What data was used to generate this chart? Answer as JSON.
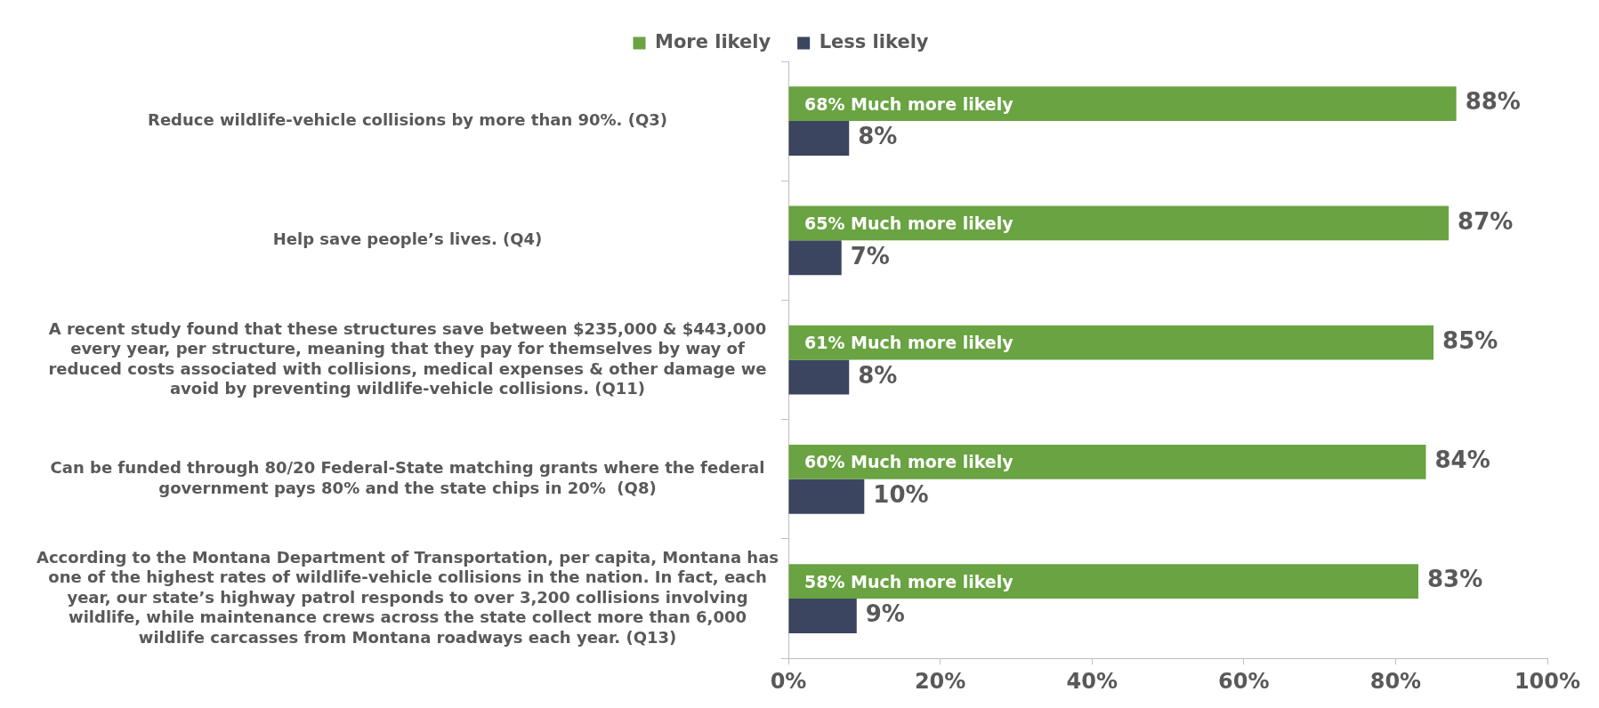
{
  "chart_data": {
    "type": "bar",
    "orientation": "horizontal",
    "categories": [
      "Reduce wildlife-vehicle collisions by more than 90%. (Q3)",
      "Help save people’s lives. (Q4)",
      "A recent study found that these structures save between $235,000 & $443,000 every year, per structure, meaning that they pay for themselves by way of reduced costs associated with collisions, medical expenses & other damage we avoid by preventing wildlife-vehicle collisions. (Q11)",
      "Can be funded through 80/20 Federal-State matching grants where the federal government pays 80% and the state chips in 20%  (Q8)",
      "According to the Montana Department of Transportation, per capita, Montana has one of the highest rates of wildlife-vehicle collisions in the nation. In fact, each year, our state’s highway patrol responds to over 3,200 collisions involving wildlife, while maintenance crews across the state collect more than 6,000 wildlife carcasses from Montana roadways each year. (Q13)"
    ],
    "series": [
      {
        "name": "More likely",
        "color": "#6aa342",
        "values": [
          88,
          87,
          85,
          84,
          83
        ],
        "value_labels": [
          "88%",
          "87%",
          "85%",
          "84%",
          "83%"
        ]
      },
      {
        "name": "Less likely",
        "color": "#3b4560",
        "values": [
          8,
          7,
          8,
          10,
          9
        ],
        "value_labels": [
          "8%",
          "7%",
          "8%",
          "10%",
          "9%"
        ]
      }
    ],
    "xlim": [
      0,
      100
    ],
    "xticks": [
      {
        "value": 0,
        "label": "0%"
      },
      {
        "value": 20,
        "label": "20%"
      },
      {
        "value": 40,
        "label": "40%"
      },
      {
        "value": 60,
        "label": "60%"
      },
      {
        "value": 80,
        "label": "80%"
      },
      {
        "value": 100,
        "label": "100%"
      }
    ],
    "annotations": [
      "68% Much more likely",
      "65% Much more likely",
      "61% Much more likely",
      "60% Much more likely",
      "58% Much more likely"
    ],
    "legend": "top",
    "grid": false
  }
}
